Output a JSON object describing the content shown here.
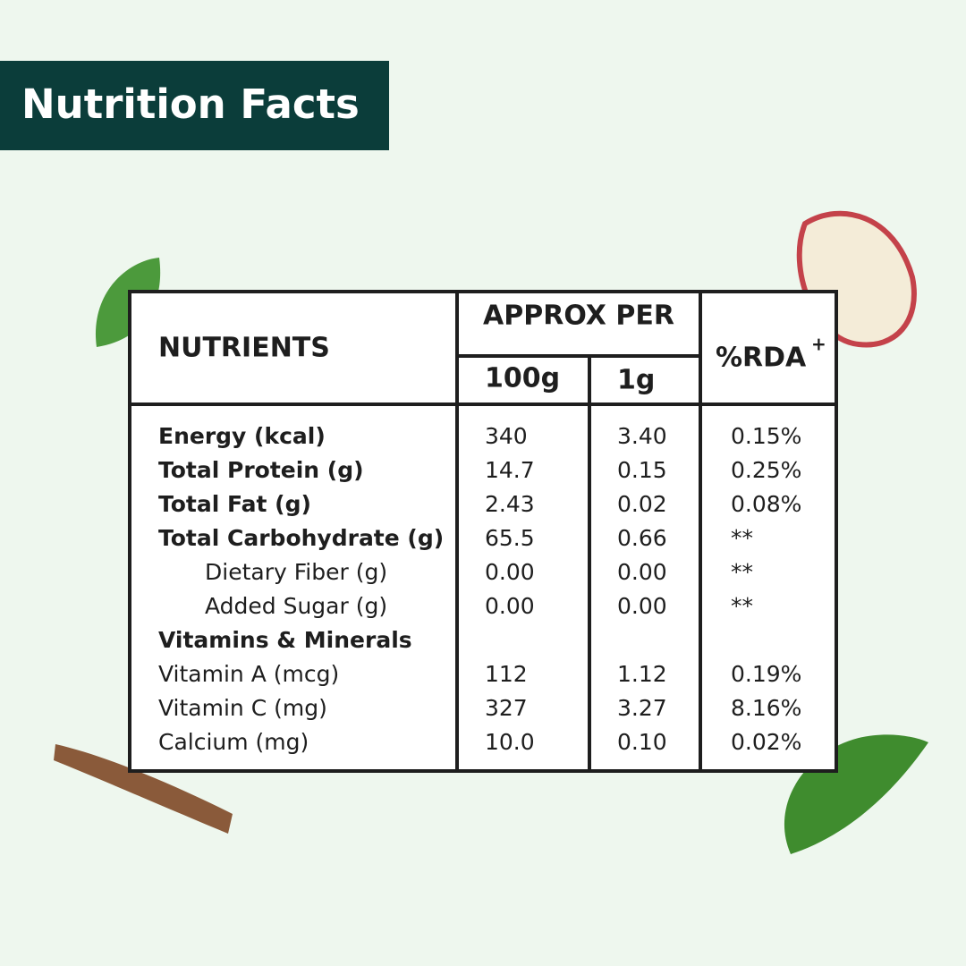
{
  "header": {
    "title": "Nutrition Facts"
  },
  "table": {
    "headers": {
      "nutrients": "NUTRIENTS",
      "approx": "APPROX PER",
      "per100": "100g",
      "per1": "1g",
      "rda": "%RDA",
      "rda_mark": "+"
    },
    "rows": [
      {
        "style": "bold",
        "cells": [
          "Energy (kcal)",
          "340",
          "3.40",
          "0.15%"
        ]
      },
      {
        "style": "bold",
        "cells": [
          "Total Protein (g)",
          "14.7",
          "0.15",
          "0.25%"
        ]
      },
      {
        "style": "bold",
        "cells": [
          "Total Fat (g)",
          "2.43",
          "0.02",
          "0.08%"
        ]
      },
      {
        "style": "bold",
        "cells": [
          "Total Carbohydrate (g)",
          "65.5",
          "0.66",
          "**"
        ]
      },
      {
        "style": "indent",
        "cells": [
          "Dietary Fiber (g)",
          "0.00",
          "0.00",
          "**"
        ]
      },
      {
        "style": "indent",
        "cells": [
          "Added Sugar (g)",
          "0.00",
          "0.00",
          "**"
        ]
      },
      {
        "style": "bold",
        "cells": [
          "Vitamins & Minerals"
        ]
      },
      {
        "style": "plain",
        "cells": [
          "Vitamin A (mcg)",
          "112",
          "1.12",
          "0.19%"
        ]
      },
      {
        "style": "plain",
        "cells": [
          "Vitamin C (mg)",
          "327",
          "3.27",
          "8.16%"
        ]
      },
      {
        "style": "plain",
        "cells": [
          "Calcium (mg)",
          "10.0",
          "0.10",
          "0.02%"
        ]
      }
    ]
  }
}
